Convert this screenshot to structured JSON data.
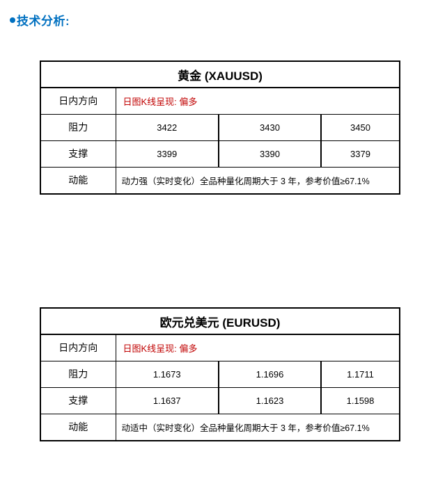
{
  "page": {
    "heading": "技术分析:"
  },
  "colors": {
    "accent_blue": "#0070C0",
    "direction_red": "#C00000",
    "border_black": "#000000"
  },
  "tables": [
    {
      "title": "黄金 (XAUUSD)",
      "direction_label": "日内方向",
      "direction_value": "日图K线呈现: 偏多",
      "resistance_label": "阻力",
      "resistance_values": [
        "3422",
        "3430",
        "3450"
      ],
      "support_label": "支撑",
      "support_values": [
        "3399",
        "3390",
        "3379"
      ],
      "momentum_label": "动能",
      "momentum_value": "动力强（实时变化）全品种量化周期大于 3 年，参考价值≥67.1%"
    },
    {
      "title": "欧元兑美元 (EURUSD)",
      "direction_label": "日内方向",
      "direction_value": "日图K线呈现: 偏多",
      "resistance_label": "阻力",
      "resistance_values": [
        "1.1673",
        "1.1696",
        "1.1711"
      ],
      "support_label": "支撑",
      "support_values": [
        "1.1637",
        "1.1623",
        "1.1598"
      ],
      "momentum_label": "动能",
      "momentum_value": "动适中（实时变化）全品种量化周期大于 3 年，参考价值≥67.1%"
    }
  ]
}
